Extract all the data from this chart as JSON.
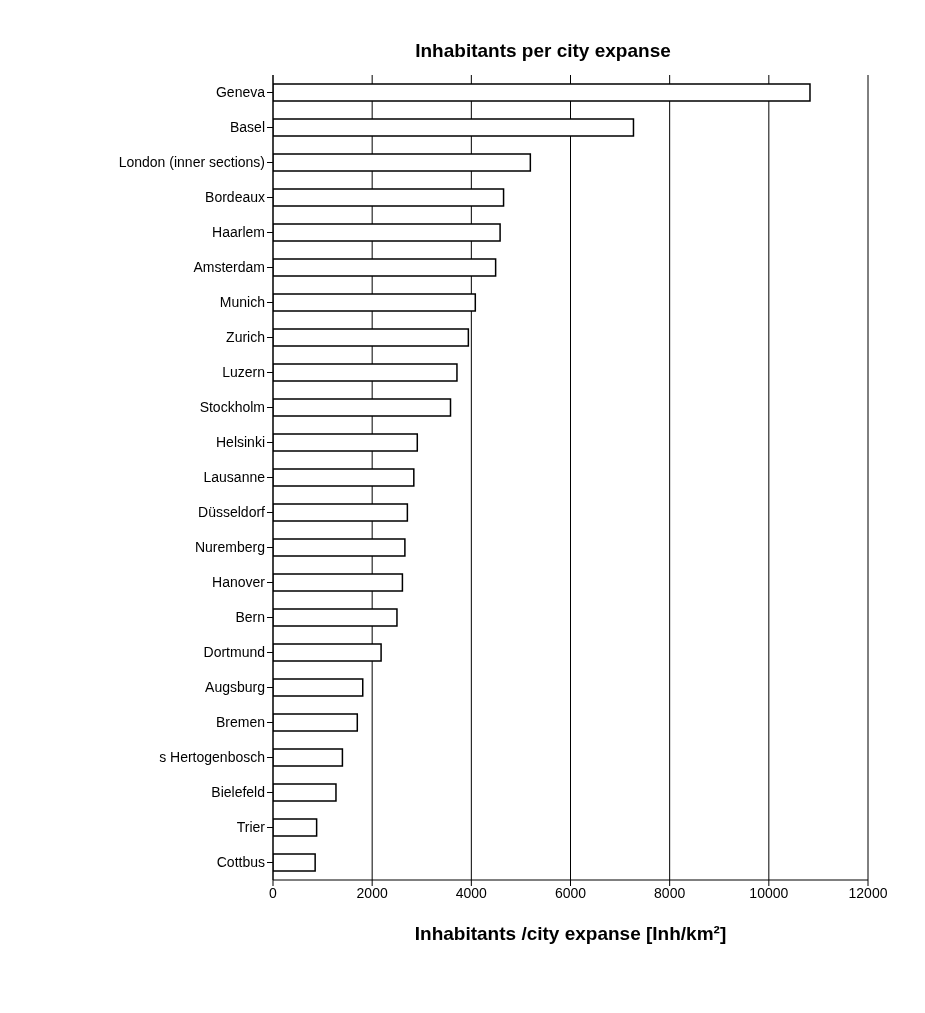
{
  "chart_data": {
    "type": "bar",
    "orientation": "horizontal",
    "title": "Inhabitants per city expanse",
    "xlabel": "Inhabitants /city expanse [Inh/km²]",
    "categories": [
      "Geneva",
      "Basel",
      "London (inner sections)",
      "Bordeaux",
      "Haarlem",
      "Amsterdam",
      "Munich",
      "Zurich",
      "Luzern",
      "Stockholm",
      "Helsinki",
      "Lausanne",
      "Düsseldorf",
      "Nuremberg",
      "Hanover",
      "Bern",
      "Dortmund",
      "Augsburg",
      "Bremen",
      "s Hertogenbosch",
      "Bielefeld",
      "Trier",
      "Cottbus"
    ],
    "values": [
      10830,
      7270,
      5190,
      4650,
      4580,
      4490,
      4080,
      3940,
      3710,
      3580,
      2910,
      2840,
      2710,
      2660,
      2610,
      2500,
      2180,
      1810,
      1700,
      1400,
      1270,
      880,
      850
    ],
    "color": "#ffffff",
    "xlim": [
      0,
      12000
    ],
    "xticks": [
      0,
      2000,
      4000,
      6000,
      8000,
      10000,
      12000
    ],
    "grid": "x",
    "legend": false
  }
}
